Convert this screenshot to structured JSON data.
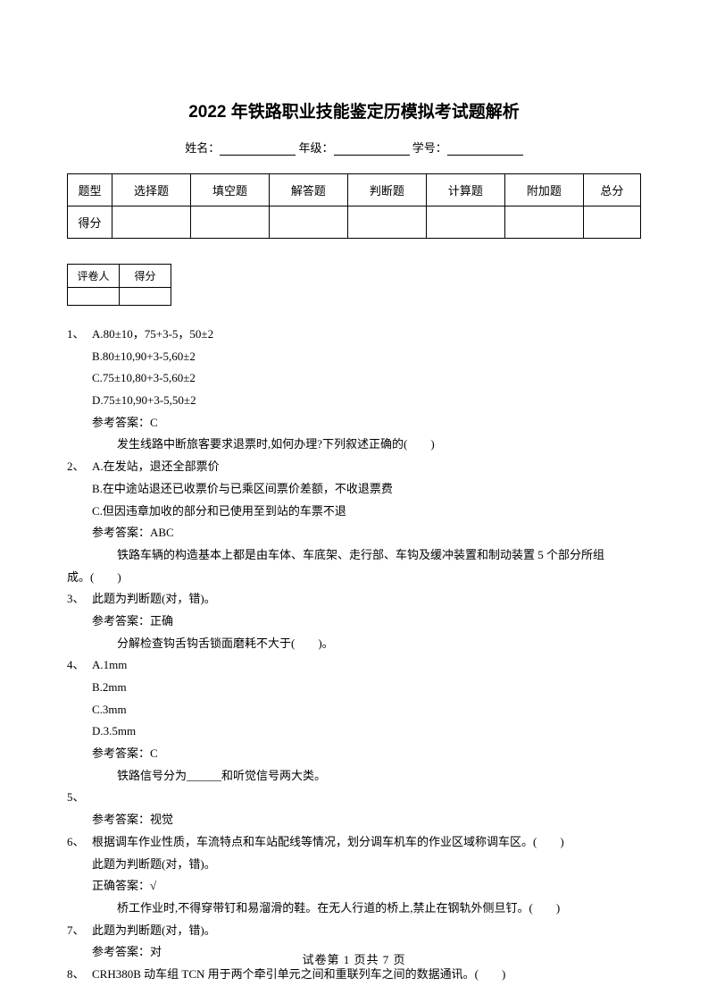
{
  "title": "2022 年铁路职业技能鉴定历模拟考试题解析",
  "info": {
    "name_label": "姓名：",
    "grade_label": " 年级：",
    "id_label": " 学号："
  },
  "score_table": {
    "row1": [
      "题型",
      "选择题",
      "填空题",
      "解答题",
      "判断题",
      "计算题",
      "附加题",
      "总分"
    ],
    "row2_label": "得分"
  },
  "grader_table": {
    "c1": "评卷人",
    "c2": "得分"
  },
  "questions": {
    "q1": {
      "num": "1、",
      "a": "A.80±10，75+3-5，50±2",
      "b": "B.80±10,90+3-5,60±2",
      "c": "C.75±10,80+3-5,60±2",
      "d": "D.75±10,90+3-5,50±2",
      "ans": "参考答案：C",
      "next": "发生线路中断旅客要求退票时,如何办理?下列叙述正确的(　　)"
    },
    "q2": {
      "num": "2、",
      "a": "A.在发站，退还全部票价",
      "b": "B.在中途站退还已收票价与已乘区间票价差额，不收退票费",
      "c": "C.但因违章加收的部分和已使用至到站的车票不退",
      "ans": "参考答案：ABC",
      "next": "铁路车辆的构造基本上都是由车体、车底架、走行部、车钩及缓冲装置和制动装置 5 个部分所组",
      "next2": "成。(　　)"
    },
    "q3": {
      "num": "3、",
      "line1": "此题为判断题(对，错)。",
      "ans": "参考答案：正确",
      "next": "分解检查钩舌钩舌锁面磨耗不大于(　　)。"
    },
    "q4": {
      "num": "4、",
      "a": "A.1mm",
      "b": "B.2mm",
      "c": "C.3mm",
      "d": "D.3.5mm",
      "ans": "参考答案：C",
      "next": "铁路信号分为______和听觉信号两大类。"
    },
    "q5": {
      "num": "5、",
      "ans": "参考答案：视觉"
    },
    "q6": {
      "num": "6、",
      "line1": "根据调车作业性质，车流特点和车站配线等情况，划分调车机车的作业区域称调车区。(　　)",
      "line2": "此题为判断题(对，错)。",
      "ans": "正确答案：√",
      "next": "桥工作业时,不得穿带钉和易溜滑的鞋。在无人行道的桥上,禁止在钢轨外侧旦钉。(　　)"
    },
    "q7": {
      "num": "7、",
      "line1": "此题为判断题(对，错)。",
      "ans": "参考答案：对"
    },
    "q8": {
      "num": "8、",
      "line1": "CRH380B 动车组 TCN 用于两个牵引单元之间和重联列车之间的数据通讯。(　　)"
    }
  },
  "footer": "试卷第 1 页共 7 页"
}
